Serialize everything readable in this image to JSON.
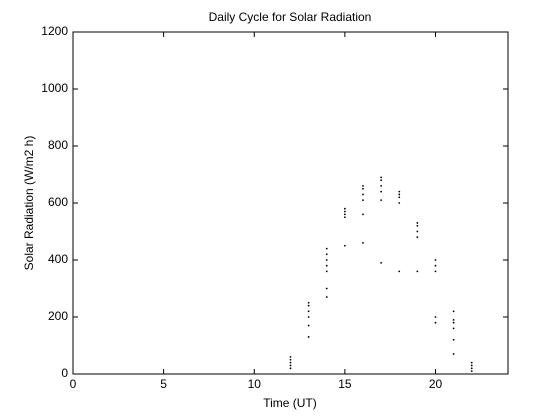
{
  "chart_data": {
    "type": "scatter",
    "title": "Daily Cycle for Solar Radiation",
    "x_label": "Time (UT)",
    "y_label": "Solar Radiation (W/m2 h)",
    "x": [
      12,
      12,
      12,
      12,
      12,
      13,
      13,
      13,
      13,
      13,
      13,
      14,
      14,
      14,
      14,
      14,
      14,
      14,
      15,
      15,
      15,
      15,
      15,
      16,
      16,
      16,
      16,
      16,
      16,
      17,
      17,
      17,
      17,
      17,
      17,
      18,
      18,
      18,
      18,
      18,
      19,
      19,
      19,
      19,
      19,
      20,
      20,
      20,
      20,
      20,
      21,
      21,
      21,
      21,
      21,
      21,
      22,
      22,
      22,
      22
    ],
    "values": [
      20,
      30,
      40,
      50,
      60,
      130,
      170,
      200,
      220,
      240,
      250,
      270,
      300,
      360,
      380,
      400,
      420,
      440,
      450,
      550,
      560,
      570,
      580,
      460,
      560,
      610,
      630,
      650,
      660,
      390,
      610,
      640,
      660,
      680,
      690,
      360,
      600,
      620,
      630,
      640,
      360,
      480,
      500,
      520,
      530,
      180,
      200,
      360,
      380,
      400,
      70,
      120,
      160,
      180,
      190,
      220,
      10,
      20,
      30,
      40
    ],
    "color": "#000000",
    "xlim": [
      0,
      24
    ],
    "xticks": [
      0,
      5,
      10,
      15,
      20
    ],
    "ylim": [
      0,
      1200
    ],
    "yticks": [
      0,
      200,
      400,
      600,
      800,
      1000,
      1200
    ],
    "grid": false
  }
}
